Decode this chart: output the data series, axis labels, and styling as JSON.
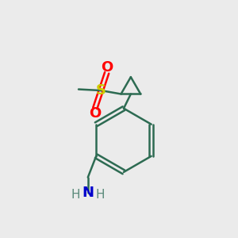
{
  "bg_color": "#ebebeb",
  "bond_color": "#2d6b52",
  "S_color": "#cccc00",
  "O_color": "#ff0000",
  "N_color": "#0000cc",
  "H_color": "#5a8a7a",
  "line_width": 1.8,
  "figsize": [
    3.0,
    3.0
  ],
  "dpi": 100,
  "xlim": [
    0,
    10
  ],
  "ylim": [
    0,
    10
  ]
}
